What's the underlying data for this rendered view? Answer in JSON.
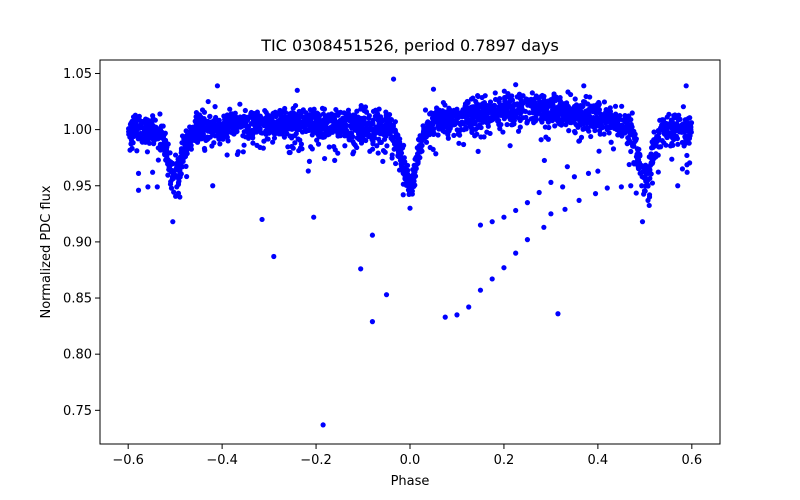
{
  "chart_data": {
    "type": "scatter",
    "title": "TIC 0308451526, period 0.7897 days",
    "xlabel": "Phase",
    "ylabel": "Normalized PDC flux",
    "xlim": [
      -0.66,
      0.66
    ],
    "ylim": [
      0.72,
      1.062
    ],
    "xticks": [
      -0.6,
      -0.4,
      -0.2,
      0.0,
      0.2,
      0.4,
      0.6
    ],
    "xtick_labels": [
      "−0.6",
      "−0.4",
      "−0.2",
      "0.0",
      "0.2",
      "0.4",
      "0.6"
    ],
    "yticks": [
      0.75,
      0.8,
      0.85,
      0.9,
      0.95,
      1.0,
      1.05
    ],
    "ytick_labels": [
      "0.75",
      "0.80",
      "0.85",
      "0.90",
      "0.95",
      "1.00",
      "1.05"
    ],
    "grid": false,
    "marker_color": "#0000ff",
    "phase_range": [
      -0.6,
      0.6
    ],
    "light_curve": {
      "baseline": 1.0,
      "primary_eclipse": {
        "phase": 0.0,
        "depth": 0.048,
        "width": 0.022
      },
      "secondary_eclipses": [
        {
          "phase": -0.5,
          "depth": 0.04,
          "width": 0.022
        },
        {
          "phase": 0.5,
          "depth": 0.04,
          "width": 0.022
        }
      ],
      "scatter_band": [
        0.012,
        0.01
      ]
    },
    "outliers": [
      {
        "x": -0.578,
        "y": 0.961
      },
      {
        "x": -0.578,
        "y": 0.946
      },
      {
        "x": -0.558,
        "y": 0.949
      },
      {
        "x": -0.548,
        "y": 0.962
      },
      {
        "x": -0.538,
        "y": 0.949
      },
      {
        "x": -0.505,
        "y": 0.918
      },
      {
        "x": -0.49,
        "y": 0.94
      },
      {
        "x": -0.42,
        "y": 0.95
      },
      {
        "x": -0.41,
        "y": 1.039
      },
      {
        "x": -0.315,
        "y": 0.92
      },
      {
        "x": -0.29,
        "y": 0.887
      },
      {
        "x": -0.24,
        "y": 1.035
      },
      {
        "x": -0.205,
        "y": 0.922
      },
      {
        "x": -0.185,
        "y": 0.737
      },
      {
        "x": -0.105,
        "y": 0.876
      },
      {
        "x": -0.08,
        "y": 0.906
      },
      {
        "x": -0.08,
        "y": 0.829
      },
      {
        "x": -0.05,
        "y": 0.853
      },
      {
        "x": -0.035,
        "y": 1.045
      },
      {
        "x": 0.0,
        "y": 0.93
      },
      {
        "x": 0.05,
        "y": 1.036
      },
      {
        "x": 0.075,
        "y": 0.833
      },
      {
        "x": 0.1,
        "y": 0.835
      },
      {
        "x": 0.125,
        "y": 0.842
      },
      {
        "x": 0.15,
        "y": 0.915
      },
      {
        "x": 0.15,
        "y": 0.857
      },
      {
        "x": 0.175,
        "y": 0.918
      },
      {
        "x": 0.175,
        "y": 0.867
      },
      {
        "x": 0.2,
        "y": 0.922
      },
      {
        "x": 0.2,
        "y": 0.877
      },
      {
        "x": 0.225,
        "y": 0.928
      },
      {
        "x": 0.225,
        "y": 0.89
      },
      {
        "x": 0.225,
        "y": 1.04
      },
      {
        "x": 0.25,
        "y": 0.935
      },
      {
        "x": 0.25,
        "y": 0.902
      },
      {
        "x": 0.275,
        "y": 0.944
      },
      {
        "x": 0.285,
        "y": 0.913
      },
      {
        "x": 0.3,
        "y": 0.953
      },
      {
        "x": 0.3,
        "y": 0.925
      },
      {
        "x": 0.315,
        "y": 0.836
      },
      {
        "x": 0.325,
        "y": 0.949
      },
      {
        "x": 0.33,
        "y": 0.929
      },
      {
        "x": 0.335,
        "y": 0.967
      },
      {
        "x": 0.35,
        "y": 0.958
      },
      {
        "x": 0.36,
        "y": 0.937
      },
      {
        "x": 0.37,
        "y": 1.039
      },
      {
        "x": 0.38,
        "y": 0.961
      },
      {
        "x": 0.395,
        "y": 0.943
      },
      {
        "x": 0.4,
        "y": 0.963
      },
      {
        "x": 0.42,
        "y": 0.948
      },
      {
        "x": 0.45,
        "y": 0.949
      },
      {
        "x": 0.47,
        "y": 0.95
      },
      {
        "x": 0.495,
        "y": 0.918
      },
      {
        "x": 0.51,
        "y": 0.94
      },
      {
        "x": 0.57,
        "y": 0.95
      },
      {
        "x": 0.58,
        "y": 0.965
      },
      {
        "x": 0.588,
        "y": 1.039
      },
      {
        "x": 0.59,
        "y": 0.962
      }
    ]
  }
}
